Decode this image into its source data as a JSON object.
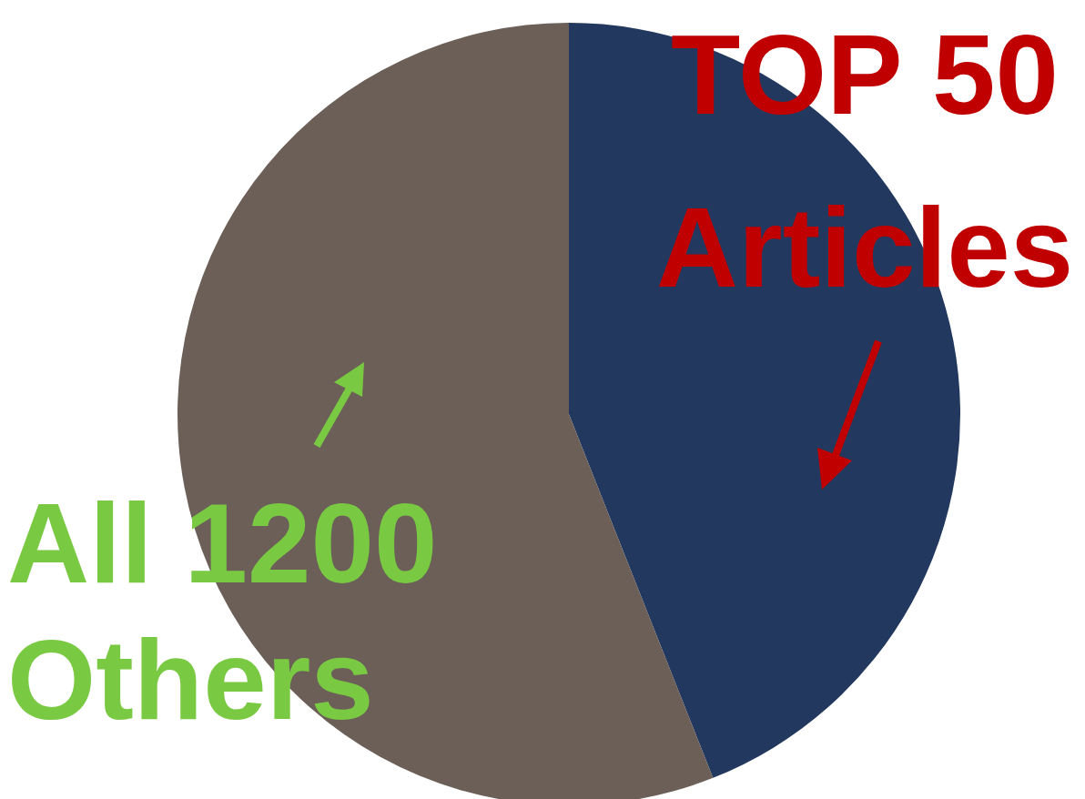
{
  "chart_data": {
    "type": "pie",
    "categories": [
      "TOP 50 Articles",
      "All 1200 Others"
    ],
    "values": [
      44,
      56
    ],
    "colors": [
      "#22385e",
      "#6b5f58"
    ]
  }
}
